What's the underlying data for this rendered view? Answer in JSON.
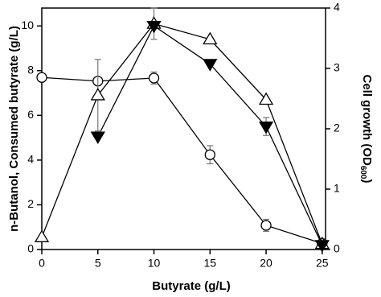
{
  "chart_data": {
    "type": "line",
    "xlabel": "Butyrate (g/L)",
    "ylabel": "n-Butanol, Consumed butyrate (g/L)",
    "y2label": {
      "text": "Cell growth (OD",
      "sub": "600",
      "end": ")"
    },
    "x": [
      0,
      5,
      10,
      15,
      20,
      25
    ],
    "xlim": [
      0,
      25.3
    ],
    "xticks": [
      0,
      5,
      10,
      15,
      20,
      25
    ],
    "ylim": [
      0,
      10.8
    ],
    "yticks": [
      0,
      2,
      4,
      6,
      8,
      10
    ],
    "y2lim": [
      0,
      4
    ],
    "y2ticks": [
      0,
      1,
      2,
      3,
      4
    ],
    "series": [
      {
        "color": "#000000",
        "marker": "circle-open",
        "axis": "y2",
        "values": [
          2.85,
          2.79,
          2.84,
          1.57,
          0.4,
          0.1
        ],
        "errors": [
          null,
          null,
          0.1,
          0.15,
          0.1,
          null
        ]
      },
      {
        "color": "#000000",
        "marker": "triangle-up-open",
        "values": [
          0.55,
          6.9,
          10.1,
          9.4,
          6.7,
          0.25
        ],
        "errors": [
          null,
          1.6,
          0.7,
          null,
          null,
          null
        ]
      },
      {
        "color": "#000000",
        "marker": "triangle-down-filled",
        "values": [
          null,
          5.05,
          10.0,
          8.3,
          5.5,
          0.2
        ],
        "errors": [
          null,
          null,
          null,
          null,
          0.4,
          null
        ]
      }
    ]
  }
}
